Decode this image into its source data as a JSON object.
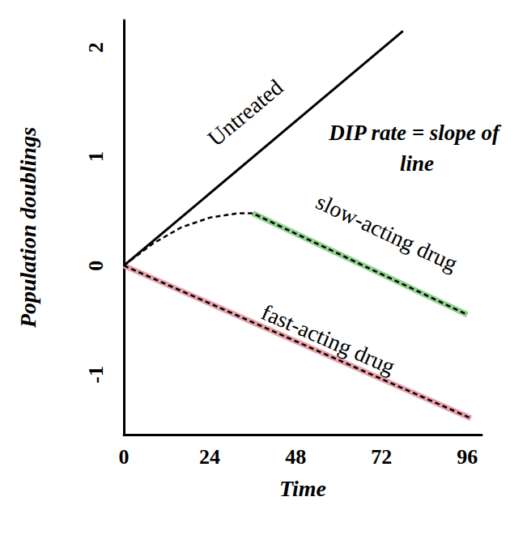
{
  "chart_data": {
    "type": "line",
    "x_label": "Time",
    "y_label": "Population doublings",
    "xlim": [
      0,
      100
    ],
    "xticks": [
      0,
      24,
      48,
      72,
      96
    ],
    "ylim": [
      -1.55,
      2.25
    ],
    "yticks": [
      -1,
      0,
      1,
      2
    ],
    "grid": false,
    "annotations": [
      "DIP rate = slope of line"
    ],
    "series": [
      {
        "name": "Untreated",
        "color": "#000000",
        "line_style": "solid",
        "x": [
          0,
          78
        ],
        "values": [
          0,
          2.15
        ]
      },
      {
        "name": "slow-acting drug",
        "color": "#000000",
        "line_style": "dashed",
        "x": [
          0,
          8,
          16,
          24,
          32,
          36,
          96
        ],
        "values": [
          0,
          0.2,
          0.35,
          0.44,
          0.48,
          0.48,
          -0.45
        ],
        "fit": {
          "color": "#8fd18f",
          "x": [
            36,
            96
          ],
          "values": [
            0.48,
            -0.45
          ]
        }
      },
      {
        "name": "fast-acting drug",
        "color": "#000000",
        "line_style": "dashed",
        "x": [
          0,
          97
        ],
        "values": [
          0,
          -1.4
        ],
        "fit": {
          "color": "#e8a0a8",
          "x": [
            0,
            97
          ],
          "values": [
            0,
            -1.4
          ]
        }
      }
    ]
  }
}
